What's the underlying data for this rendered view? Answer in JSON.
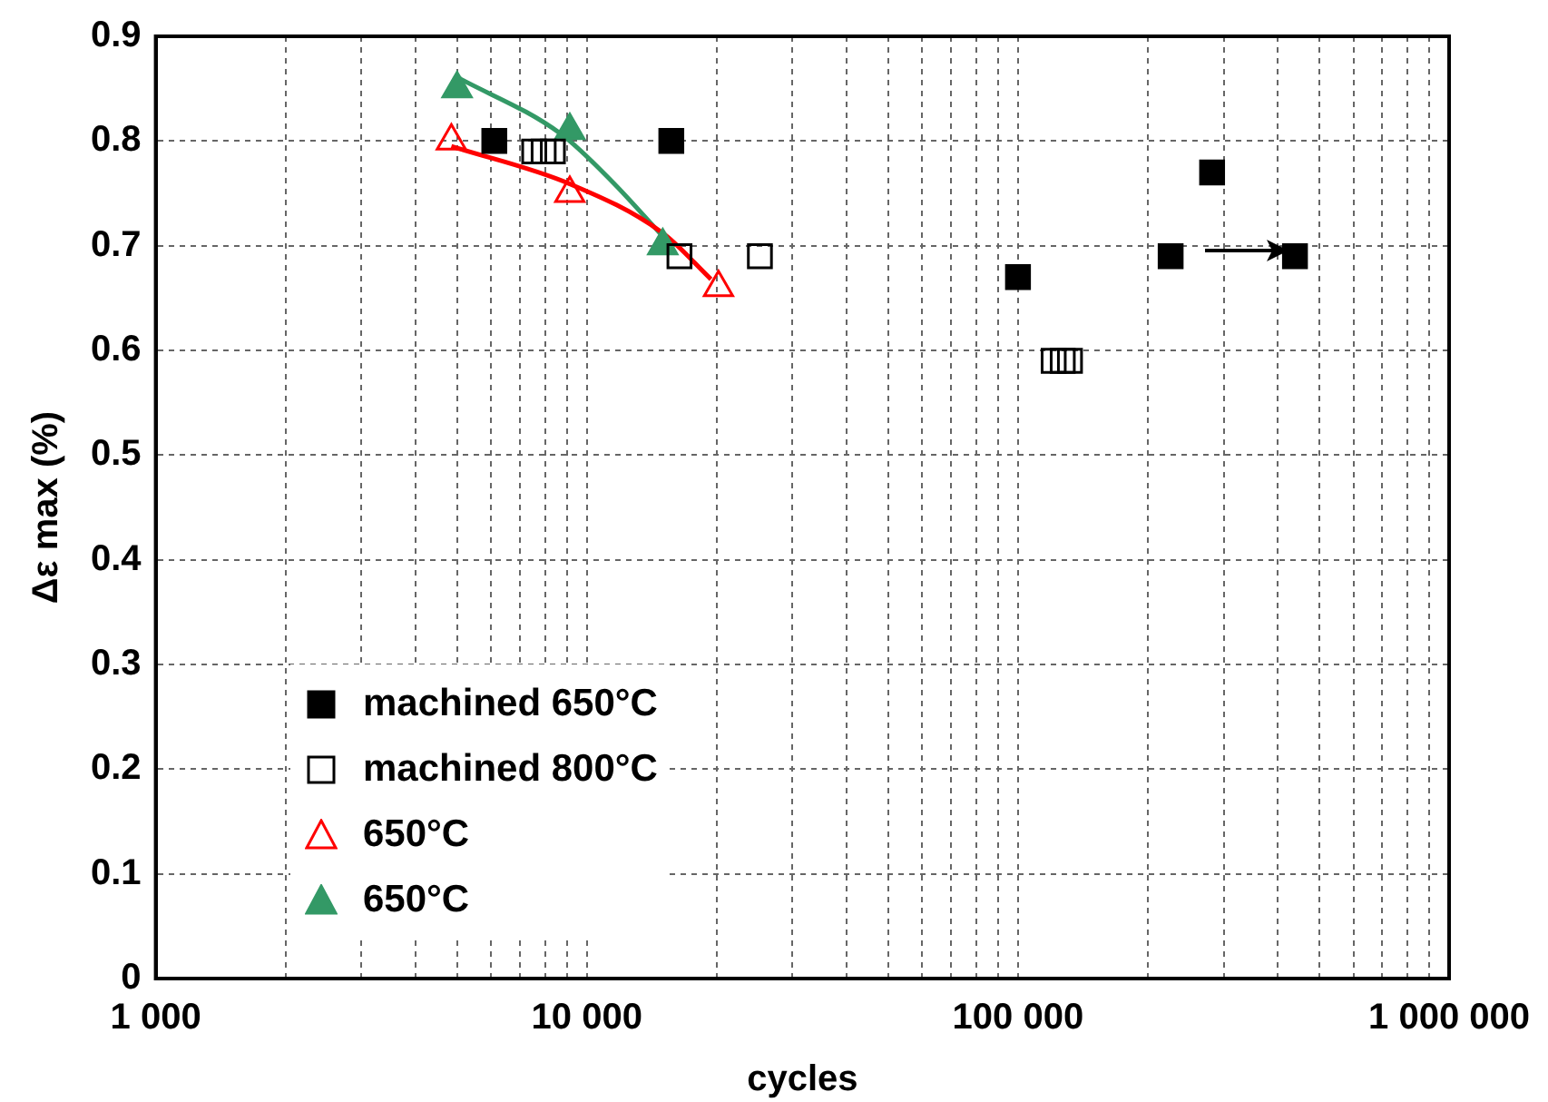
{
  "chart_data": {
    "type": "scatter",
    "xlabel": "cycles",
    "ylabel": "Δε max (%)",
    "log": "x",
    "xlim": [
      1000,
      1000000
    ],
    "xticks": [
      {
        "value": 1000,
        "label": "1 000"
      },
      {
        "value": 2000,
        "label": null
      },
      {
        "value": 3000,
        "label": null
      },
      {
        "value": 4000,
        "label": null
      },
      {
        "value": 5000,
        "label": null
      },
      {
        "value": 6000,
        "label": null
      },
      {
        "value": 7000,
        "label": null
      },
      {
        "value": 8000,
        "label": null
      },
      {
        "value": 9000,
        "label": null
      },
      {
        "value": 10000,
        "label": "10 000"
      },
      {
        "value": 20000,
        "label": null
      },
      {
        "value": 30000,
        "label": null
      },
      {
        "value": 40000,
        "label": null
      },
      {
        "value": 50000,
        "label": null
      },
      {
        "value": 60000,
        "label": null
      },
      {
        "value": 70000,
        "label": null
      },
      {
        "value": 80000,
        "label": null
      },
      {
        "value": 90000,
        "label": null
      },
      {
        "value": 100000,
        "label": "100 000"
      },
      {
        "value": 200000,
        "label": null
      },
      {
        "value": 300000,
        "label": null
      },
      {
        "value": 400000,
        "label": null
      },
      {
        "value": 500000,
        "label": null
      },
      {
        "value": 600000,
        "label": null
      },
      {
        "value": 700000,
        "label": null
      },
      {
        "value": 800000,
        "label": null
      },
      {
        "value": 900000,
        "label": null
      },
      {
        "value": 1000000,
        "label": "1 000 000"
      }
    ],
    "ylim": [
      0,
      0.9
    ],
    "yticks": [
      0,
      0.1,
      0.2,
      0.3,
      0.4,
      0.5,
      0.6,
      0.7,
      0.8,
      0.9
    ],
    "grid": true,
    "legend": "bottom left",
    "series": [
      {
        "name": "machined 650°C",
        "color": "#000000",
        "marker": "square",
        "x": [
          6100,
          15700,
          100000,
          226000,
          282000,
          439000
        ],
        "values": [
          0.8,
          0.8,
          0.67,
          0.69,
          0.77,
          0.69
        ]
      },
      {
        "name": "machined 800°C",
        "color": "#000000",
        "marker": "square-open",
        "x": [
          7550,
          7940,
          8340,
          16400,
          25200,
          121000,
          127000,
          132000
        ],
        "values": [
          0.79,
          0.79,
          0.79,
          0.69,
          0.69,
          0.59,
          0.59,
          0.59
        ]
      },
      {
        "name": "650°C",
        "color": "#ff0000",
        "marker": "triangle-open",
        "x": [
          4850,
          9130,
          20200
        ],
        "values": [
          0.8,
          0.75,
          0.66
        ]
      },
      {
        "name": "650°C",
        "color": "#339966",
        "marker": "triangle",
        "x": [
          5000,
          9130,
          15000
        ],
        "values": [
          0.85,
          0.81,
          0.7
        ]
      },
      {
        "type": "line",
        "color": "#ff0000",
        "marker": "none",
        "x": [
          4850,
          9130,
          15000,
          19400
        ],
        "values": [
          0.795,
          0.759,
          0.712,
          0.668
        ]
      },
      {
        "type": "line",
        "color": "#339966",
        "marker": "none",
        "x": [
          5000,
          8690,
          11400,
          15000
        ],
        "values": [
          0.861,
          0.807,
          0.762,
          0.709
        ]
      }
    ]
  }
}
